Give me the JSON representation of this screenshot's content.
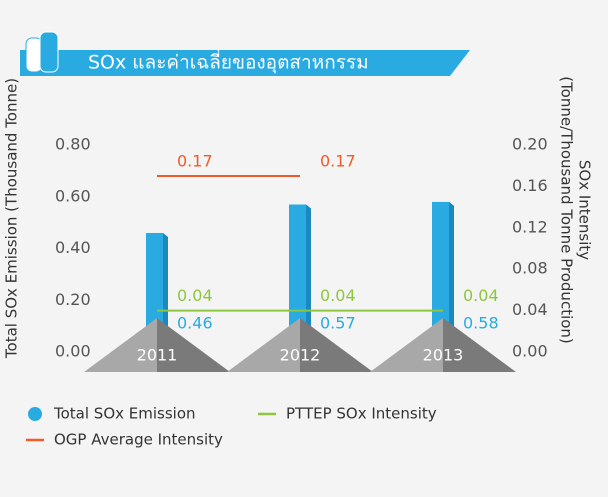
{
  "chart_data": {
    "type": "bar",
    "title": "SOx และค่าเฉลี่ยของอุตสาหกรรม",
    "ylabel": "Total SOx Emission (Thousand Tonne)",
    "y2label": [
      "SOx Intensity",
      "(Tonne/Thousand Tonne Production)"
    ],
    "categories": [
      "2011",
      "2012",
      "2013"
    ],
    "series": [
      {
        "name": "Total SOx Emission",
        "type": "bar",
        "color": "#29abe2",
        "values": [
          0.46,
          0.57,
          0.58
        ]
      },
      {
        "name": "PTTEP SOx Intensity",
        "type": "line",
        "axis": "y2",
        "color": "#8dc63f",
        "values": [
          0.04,
          0.04,
          0.04
        ]
      },
      {
        "name": "OGP Average Intensity",
        "type": "line",
        "axis": "y2",
        "color": "#f15a29",
        "values": [
          0.17,
          0.17,
          null
        ]
      }
    ],
    "ylim": [
      0,
      0.8
    ],
    "yticks": [
      {
        "value": 0,
        "label": "0.00"
      },
      {
        "value": 0.2,
        "label": "0.20"
      },
      {
        "value": 0.4,
        "label": "0.40"
      },
      {
        "value": 0.6,
        "label": "0.60"
      },
      {
        "value": 0.8,
        "label": "0.80"
      }
    ],
    "y2lim": [
      0,
      0.2
    ],
    "y2ticks": [
      {
        "value": 0,
        "label": "0.00"
      },
      {
        "value": 0.04,
        "label": "0.04"
      },
      {
        "value": 0.08,
        "label": "0.08"
      },
      {
        "value": 0.12,
        "label": "0.12"
      },
      {
        "value": 0.16,
        "label": "0.16"
      },
      {
        "value": 0.2,
        "label": "0.20"
      }
    ],
    "legend": "bottom"
  }
}
